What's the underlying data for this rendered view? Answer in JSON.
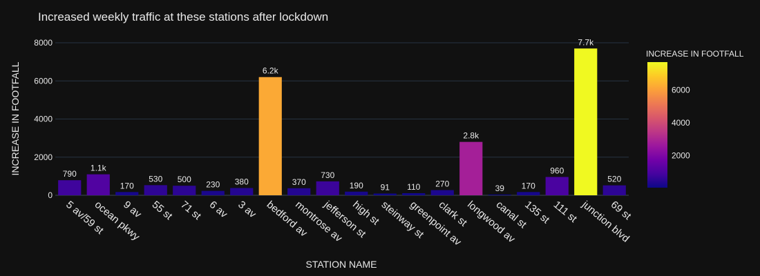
{
  "chart_data": {
    "type": "bar",
    "title": "Increased weekly traffic at these stations after lockdown",
    "xlabel": "STATION NAME",
    "ylabel": "INCREASE IN FOOTFALL",
    "ylim": [
      0,
      8000
    ],
    "yticks": [
      "0",
      "2000",
      "4000",
      "6000",
      "8000"
    ],
    "grid": true,
    "categories": [
      "5 av/59 st",
      "ocean pkwy",
      "9 av",
      "55 st",
      "71 st",
      "6 av",
      "3 av",
      "bedford av",
      "montrose av",
      "jefferson st",
      "high st",
      "steinway st",
      "greenpoint av",
      "clark st",
      "longwood av",
      "canal st",
      "135 st",
      "111 st",
      "junction blvd",
      "69 st"
    ],
    "values": [
      790,
      1100,
      170,
      530,
      500,
      230,
      380,
      6200,
      370,
      730,
      190,
      91,
      110,
      270,
      2800,
      39,
      170,
      960,
      7700,
      520
    ],
    "labels": [
      "790",
      "1.1k",
      "170",
      "530",
      "500",
      "230",
      "380",
      "6.2k",
      "370",
      "730",
      "190",
      "91",
      "110",
      "270",
      "2.8k",
      "39",
      "170",
      "960",
      "7.7k",
      "520"
    ],
    "colorbar": {
      "title": "INCREASE IN FOOTFALL",
      "range": [
        39,
        7700
      ],
      "ticks": [
        "2000",
        "4000",
        "6000"
      ],
      "tick_values": [
        2000,
        4000,
        6000
      ],
      "colorscale": [
        "#0d0887",
        "#46039f",
        "#7201a8",
        "#9c179e",
        "#bd3786",
        "#d8576b",
        "#ed7953",
        "#fb9f3a",
        "#fdca26",
        "#f0f921"
      ]
    },
    "colors": {
      "background": "#111111",
      "grid": "#283442",
      "text": "#e8e8e8"
    }
  }
}
